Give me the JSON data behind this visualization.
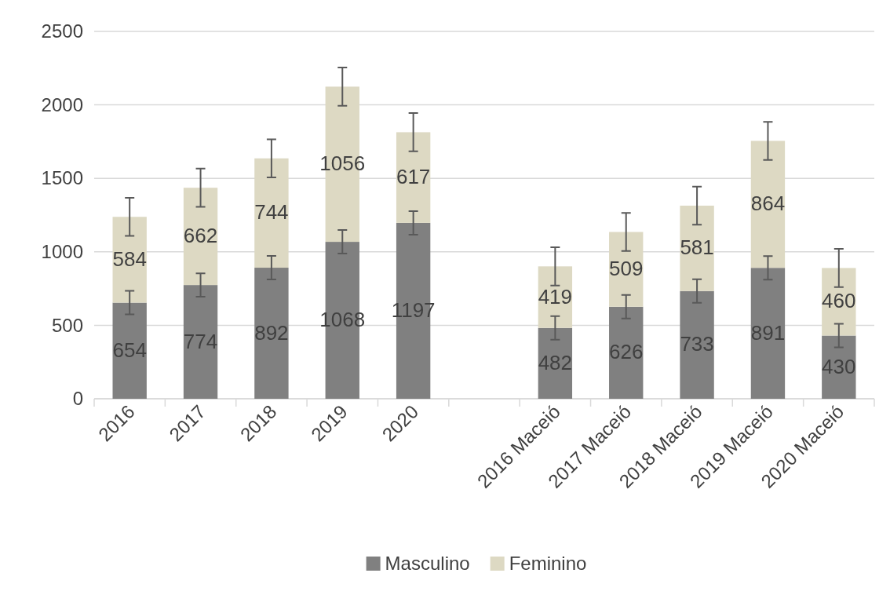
{
  "chart_data": {
    "type": "bar",
    "stacked": true,
    "categories": [
      "2016",
      "2017",
      "2018",
      "2019",
      "2020",
      null,
      "2016 Maceió",
      "2017 Maceió",
      "2018 Maceió",
      "2019 Maceió",
      "2020 Maceió"
    ],
    "series": [
      {
        "name": "Masculino",
        "color": "#808080",
        "values": [
          654,
          774,
          892,
          1068,
          1197,
          null,
          482,
          626,
          733,
          891,
          430
        ],
        "errors": [
          80,
          80,
          80,
          80,
          80,
          null,
          80,
          80,
          80,
          80,
          80
        ]
      },
      {
        "name": "Feminino",
        "color": "#ddd9c3",
        "values": [
          584,
          662,
          744,
          1056,
          617,
          null,
          419,
          509,
          581,
          864,
          460
        ],
        "errors": [
          130,
          130,
          130,
          130,
          130,
          null,
          130,
          130,
          130,
          130,
          130
        ]
      }
    ],
    "ylim": [
      0,
      2500
    ],
    "yticks": [
      0,
      500,
      1000,
      1500,
      2000,
      2500
    ],
    "grid": "y",
    "legend": "bottom",
    "data_labels": true
  }
}
